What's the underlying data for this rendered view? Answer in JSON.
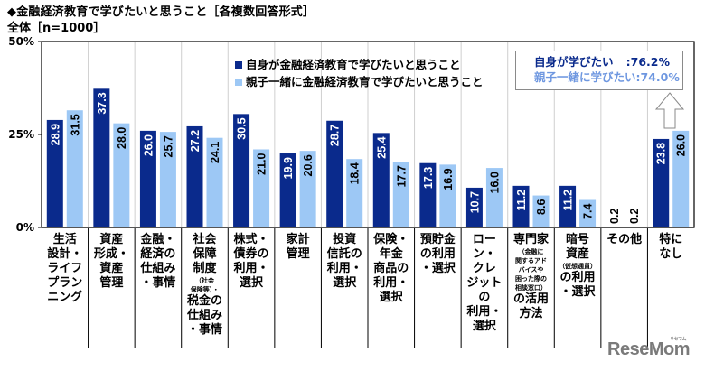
{
  "header": {
    "title": "◆金融経済教育で学びたいと思うこと［各複数回答形式］",
    "subtitle": "全体［n=1000］"
  },
  "legend": {
    "items": [
      {
        "label": "自身が金融経済教育で学びたいと思うこと",
        "color": "#0a2a8c"
      },
      {
        "label": "親子一緒に金融経済教育で学びたいと思うこと",
        "color": "#9dc8f5"
      }
    ]
  },
  "callout": {
    "rows": [
      {
        "label": "自身が学びたい",
        "value": ":76.2%"
      },
      {
        "label": "親子一緒に学びたい",
        "value": ":74.0%"
      }
    ]
  },
  "watermark": {
    "text": "ReseMom",
    "kana": "リセマム"
  },
  "chart_data": {
    "type": "bar",
    "title": "◆金融経済教育で学びたいと思うこと［各複数回答形式］",
    "subtitle": "全体［n=1000］",
    "xlabel": "",
    "ylabel": "",
    "ylim": [
      0,
      50
    ],
    "yticks": [
      "0%",
      "25%",
      "50%"
    ],
    "ytick_values": [
      0,
      25,
      50
    ],
    "grid": "vertical separators between categories",
    "legend_position": "top-center",
    "categories": [
      {
        "lines": [
          "生活",
          "設計・",
          "ライフ",
          "プラン",
          "ニング"
        ],
        "small": []
      },
      {
        "lines": [
          "資産",
          "形成・",
          "資産",
          "管理"
        ],
        "small": []
      },
      {
        "lines": [
          "金融・",
          "経済の",
          "仕組み",
          "・事情"
        ],
        "small": []
      },
      {
        "lines": [
          "社会",
          "保障",
          "制度"
        ],
        "small": [
          "（社会",
          "保険等）・"
        ],
        "after": [
          "税金の",
          "仕組み",
          "・事情"
        ]
      },
      {
        "lines": [
          "株式・",
          "債券の",
          "利用・",
          "選択"
        ],
        "small": []
      },
      {
        "lines": [
          "家計",
          "管理"
        ],
        "small": []
      },
      {
        "lines": [
          "投資",
          "信託の",
          "利用・",
          "選択"
        ],
        "small": []
      },
      {
        "lines": [
          "保険・",
          "年金",
          "商品の",
          "利用・",
          "選択"
        ],
        "small": []
      },
      {
        "lines": [
          "預貯金",
          "の利用",
          "・選択"
        ],
        "small": []
      },
      {
        "lines": [
          "ローン・",
          "クレ",
          "ジットの",
          "利用・",
          "選択"
        ],
        "small": []
      },
      {
        "lines": [
          "専門家"
        ],
        "small": [
          "（金融に",
          "関するアド",
          "バイスや",
          "困った際の",
          "相談窓口）"
        ],
        "after": [
          "の活用",
          "方法"
        ]
      },
      {
        "lines": [
          "暗号",
          "資産"
        ],
        "small": [
          "（仮想通貨）"
        ],
        "after": [
          "の利用",
          "・選択"
        ]
      },
      {
        "lines": [
          "その他"
        ],
        "small": []
      },
      {
        "lines": [
          "特に",
          "なし"
        ],
        "small": []
      }
    ],
    "series": [
      {
        "name": "自身が金融経済教育で学びたいと思うこと",
        "color": "#0a2a8c",
        "values": [
          28.9,
          37.3,
          26.0,
          27.2,
          30.5,
          19.9,
          28.7,
          25.4,
          17.3,
          10.7,
          11.2,
          11.2,
          0.2,
          23.8
        ],
        "labels": [
          "28.9",
          "37.3",
          "26.0",
          "27.2",
          "30.5",
          "19.9",
          "28.7",
          "25.4",
          "17.3",
          "10.7",
          "11.2",
          "11.2",
          "0.2",
          "23.8"
        ]
      },
      {
        "name": "親子一緒に金融経済教育で学びたいと思うこと",
        "color": "#9dc8f5",
        "values": [
          31.5,
          28.0,
          25.7,
          24.1,
          21.0,
          20.6,
          18.4,
          17.7,
          16.9,
          16.0,
          8.6,
          7.4,
          0.2,
          26.0
        ],
        "labels": [
          "31.5",
          "28.0",
          "25.7",
          "24.1",
          "21.0",
          "20.6",
          "18.4",
          "17.7",
          "16.9",
          "16.0",
          "8.6",
          "7.4",
          "0.2",
          "26.0"
        ]
      }
    ]
  }
}
